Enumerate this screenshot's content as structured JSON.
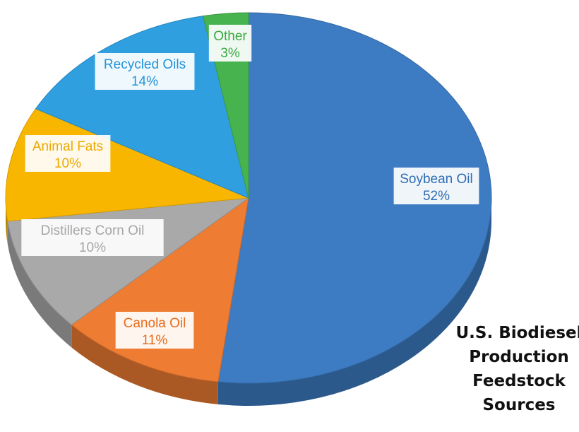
{
  "chart_data": {
    "type": "pie",
    "title_lines": [
      "U.S. Biodiesel",
      "Production",
      "Feedstock",
      "Sources"
    ],
    "slices": [
      {
        "label": "Soybean Oil",
        "value": 52,
        "percent_label": "52%",
        "color": "#3d7cc2",
        "label_color": "#2f6db3"
      },
      {
        "label": "Canola Oil",
        "value": 11,
        "percent_label": "11%",
        "color": "#ee7c32",
        "label_color": "#e56d1c"
      },
      {
        "label": "Distillers Corn Oil",
        "value": 10,
        "percent_label": "10%",
        "color": "#a9a9a9",
        "label_color": "#a6a6a6"
      },
      {
        "label": "Animal Fats",
        "value": 10,
        "percent_label": "10%",
        "color": "#f8b600",
        "label_color": "#eea800"
      },
      {
        "label": "Recycled Oils",
        "value": 14,
        "percent_label": "14%",
        "color": "#2f9fe0",
        "label_color": "#2593d8"
      },
      {
        "label": "Other",
        "value": 3,
        "percent_label": "3%",
        "color": "#47b34f",
        "label_color": "#3aa843"
      }
    ]
  }
}
